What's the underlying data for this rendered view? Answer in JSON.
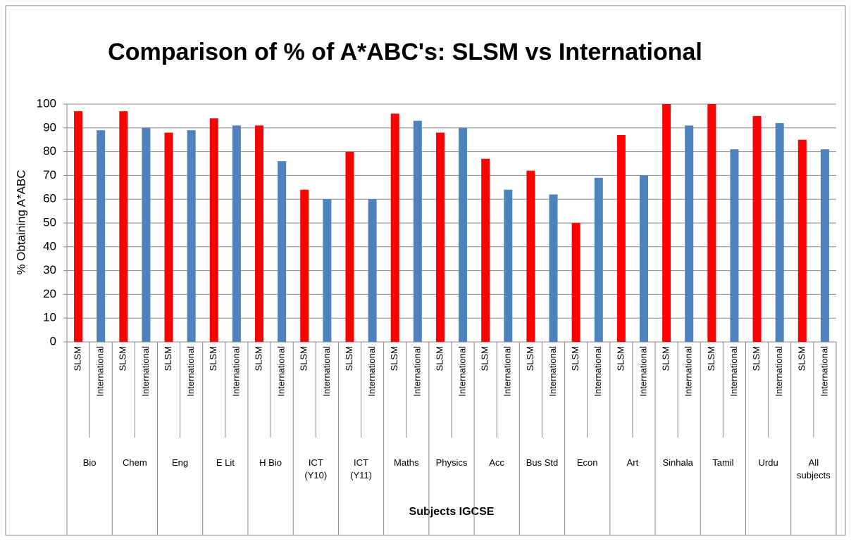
{
  "chart_data": {
    "type": "bar",
    "title": "Comparison of % of A*ABC's: SLSM vs International",
    "x_label": "Subjects IGCSE",
    "y_label": "% Obtaining A*ABC",
    "categories": [
      "Bio",
      "Chem",
      "Eng",
      "E Lit",
      "H Bio",
      "ICT\n(Y10)",
      "ICT\n(Y11)",
      "Maths",
      "Physics",
      "Acc",
      "Bus Std",
      "Econ",
      "Art",
      "Sinhala",
      "Tamil",
      "Urdu",
      "All\nsubjects"
    ],
    "series": [
      {
        "name": "SLSM",
        "color": "#ff0000",
        "values": [
          97,
          97,
          88,
          94,
          91,
          64,
          80,
          96,
          88,
          77,
          72,
          50,
          87,
          100,
          100,
          95,
          85
        ]
      },
      {
        "name": "International",
        "color": "#4f81bd",
        "values": [
          89,
          90,
          89,
          91,
          76,
          60,
          60,
          93,
          90,
          64,
          62,
          69,
          70,
          91,
          81,
          92,
          81
        ]
      }
    ],
    "ylim": [
      0,
      100
    ],
    "yticks": [
      0,
      10,
      20,
      30,
      40,
      50,
      60,
      70,
      80,
      90,
      100
    ],
    "grid": true
  }
}
